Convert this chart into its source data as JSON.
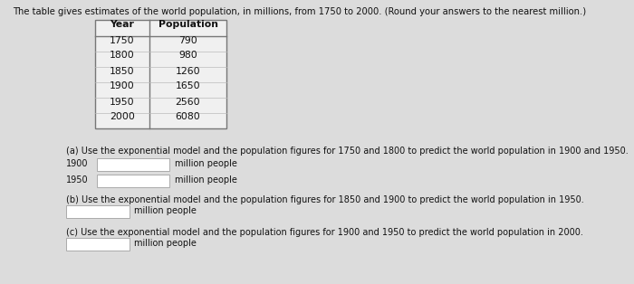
{
  "title": "The table gives estimates of the world population, in millions, from 1750 to 2000. (Round your answers to the nearest million.)",
  "table_headers": [
    "Year",
    "Population"
  ],
  "table_data": [
    [
      "1750",
      "790"
    ],
    [
      "1800",
      "980"
    ],
    [
      "1850",
      "1260"
    ],
    [
      "1900",
      "1650"
    ],
    [
      "1950",
      "2560"
    ],
    [
      "2000",
      "6080"
    ]
  ],
  "part_a_text": "(a) Use the exponential model and the population figures for 1750 and 1800 to predict the world population in 1900 and 1950.",
  "part_a_suffix": "million people",
  "part_b_text": "(b) Use the exponential model and the population figures for 1850 and 1900 to predict the world population in 1950.",
  "part_b_suffix": "million people",
  "part_c_text": "(c) Use the exponential model and the population figures for 1900 and 1950 to predict the world population in 2000.",
  "part_c_suffix": "million people",
  "bg_color": "#dcdcdc",
  "table_bg": "#f0f0f0",
  "input_box_color": "#ffffff",
  "text_color": "#111111",
  "header_color": "#000000",
  "title_fontsize": 7.2,
  "table_fontsize": 7.8,
  "body_fontsize": 7.0
}
